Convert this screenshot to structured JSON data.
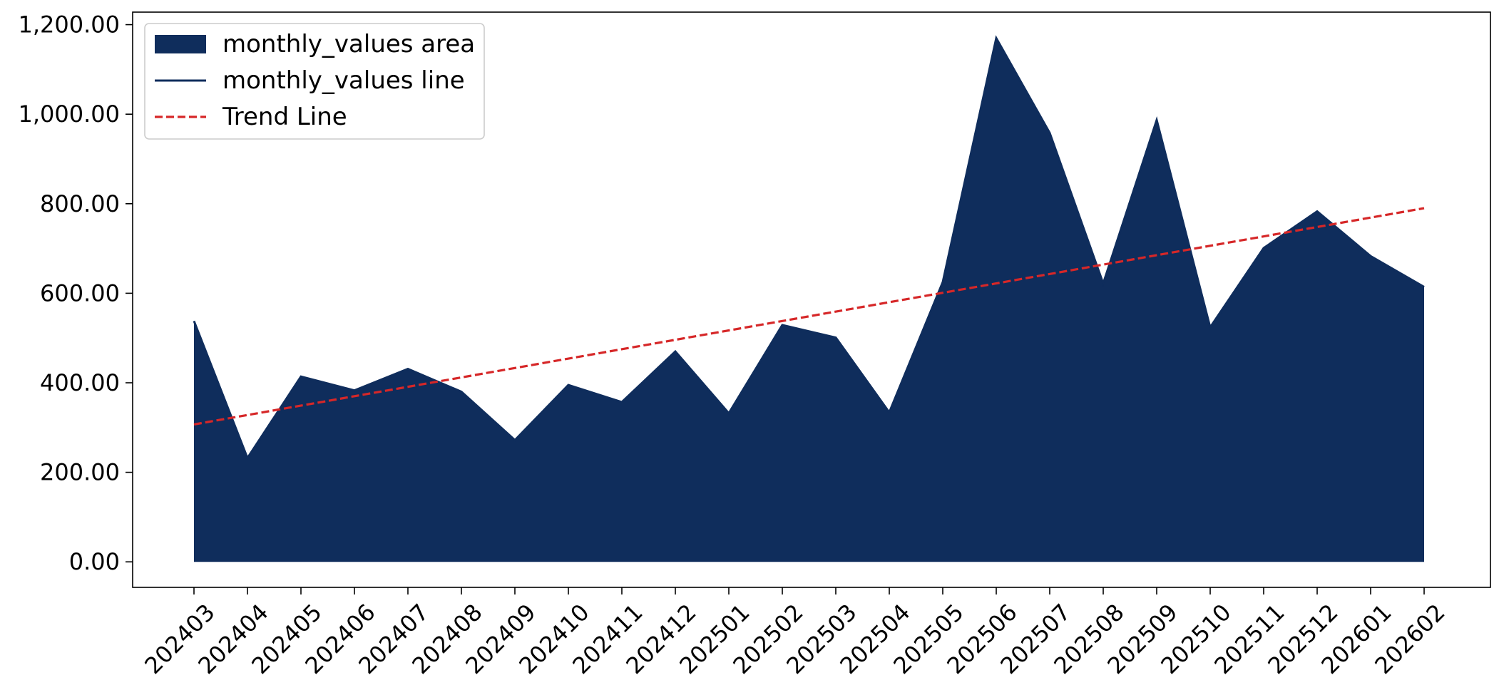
{
  "chart_data": {
    "type": "area",
    "categories": [
      "202403",
      "202404",
      "202405",
      "202406",
      "202407",
      "202408",
      "202409",
      "202410",
      "202411",
      "202412",
      "202501",
      "202502",
      "202503",
      "202504",
      "202505",
      "202506",
      "202507",
      "202508",
      "202509",
      "202510",
      "202511",
      "202512",
      "202601",
      "202602"
    ],
    "series": [
      {
        "name": "monthly_values area",
        "kind": "area",
        "color": "#0f2d5c",
        "values": [
          538,
          232,
          414,
          383,
          431,
          380,
          272,
          395,
          357,
          470,
          332,
          529,
          501,
          334,
          625,
          1170,
          958,
          622,
          987,
          524,
          701,
          783,
          683,
          614
        ]
      },
      {
        "name": "monthly_values line",
        "kind": "line",
        "color": "#0f2d5c",
        "values": [
          538,
          232,
          414,
          383,
          431,
          380,
          272,
          395,
          357,
          470,
          332,
          529,
          501,
          334,
          625,
          1170,
          958,
          622,
          987,
          524,
          701,
          783,
          683,
          614
        ]
      },
      {
        "name": "Trend Line",
        "kind": "trend",
        "color": "#d62728",
        "style": "dashed",
        "start": 307,
        "end": 790
      }
    ],
    "yticks": [
      "0.00",
      "200.00",
      "400.00",
      "600.00",
      "800.00",
      "1,000.00",
      "1,200.00"
    ],
    "ytick_values": [
      0,
      200,
      400,
      600,
      800,
      1000,
      1200
    ],
    "ylim": [
      -57,
      1228
    ],
    "legend_position": "upper left",
    "grid": false
  }
}
